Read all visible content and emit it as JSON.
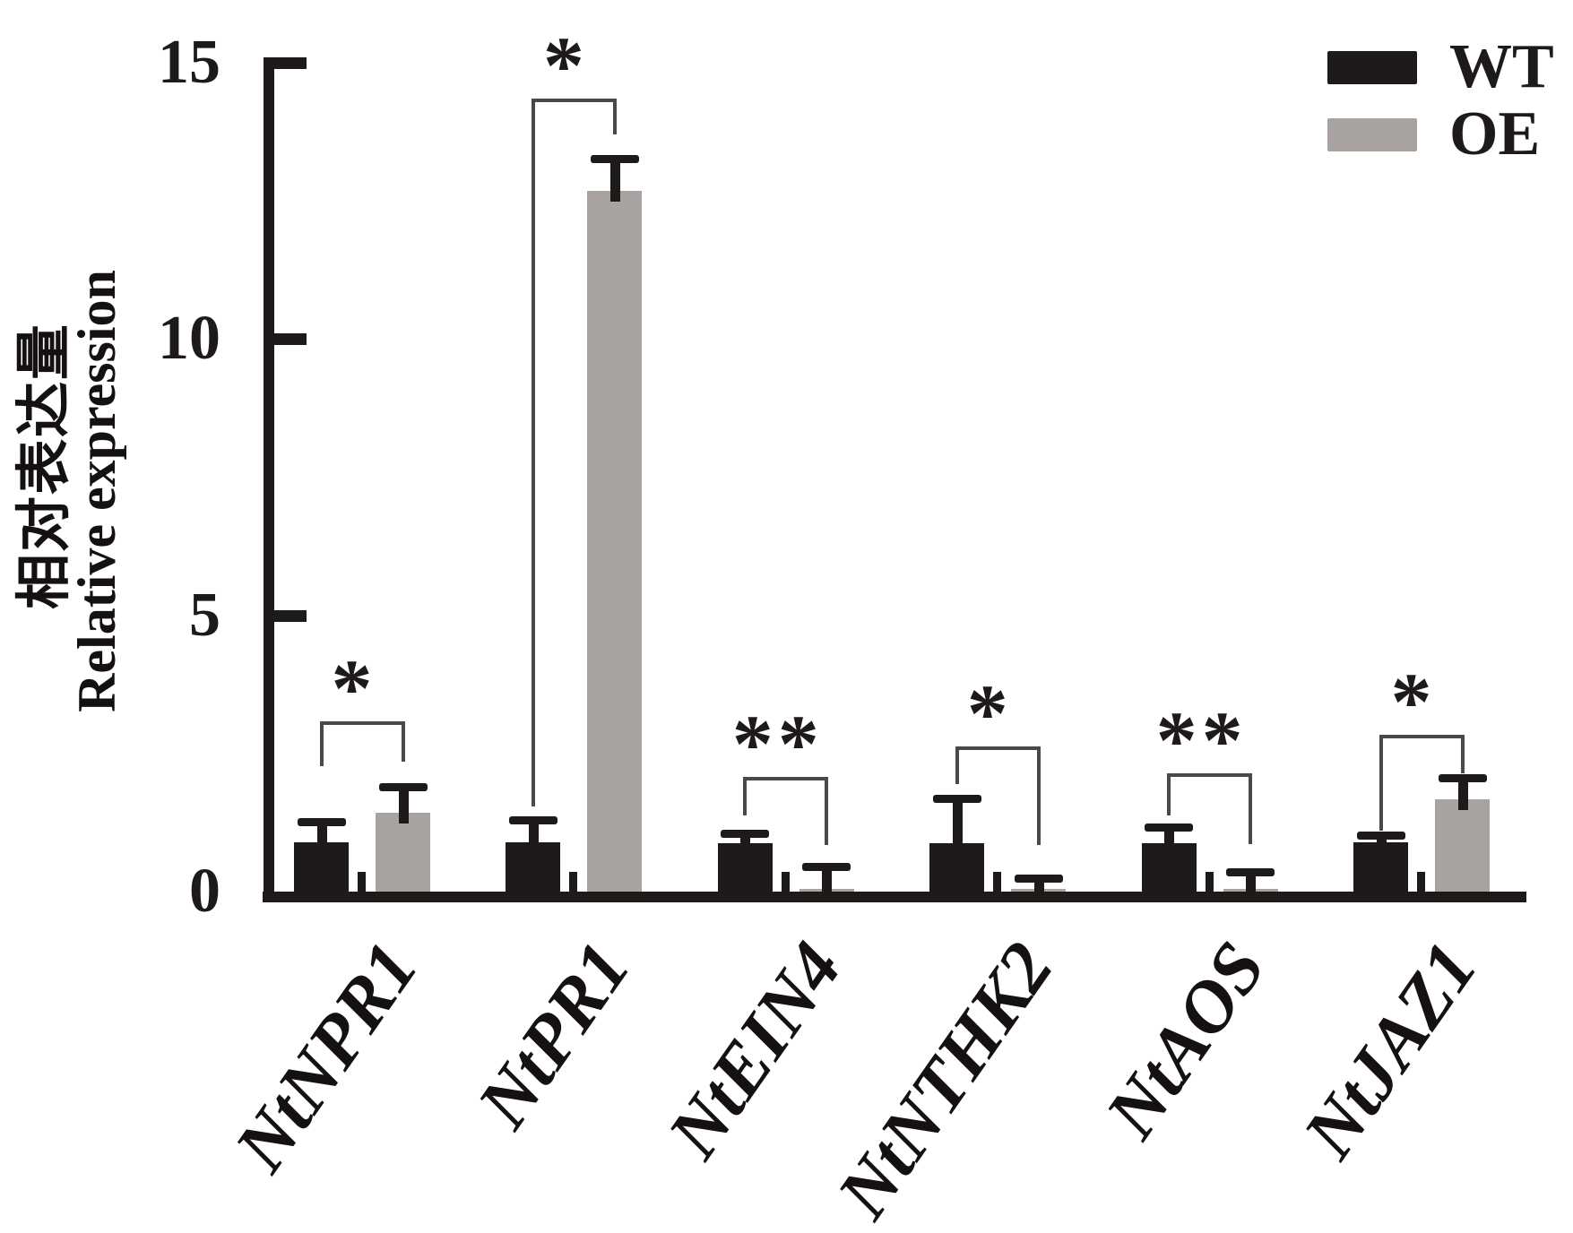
{
  "chart_data": {
    "type": "bar",
    "title": "",
    "ylabel_zh": "相对表达量",
    "ylabel_en": "Relative expression",
    "xlabel": "",
    "ylim": [
      0,
      15
    ],
    "yticks": [
      0,
      5,
      10,
      15
    ],
    "grid": false,
    "legend_position": "top-right",
    "categories": [
      "NtNPR1",
      "NtPR1",
      "NtEIN4",
      "NtNTHK2",
      "NtAOS",
      "NtJAZ1"
    ],
    "series": [
      {
        "name": "WT",
        "color": "#1e1a1a",
        "values": [
          0.89,
          0.89,
          0.87,
          0.88,
          0.88,
          0.89
        ],
        "err_top": [
          1.26,
          1.3,
          1.05,
          1.69,
          1.17,
          1.02
        ]
      },
      {
        "name": "OE",
        "color": "#a8a3a1",
        "values": [
          1.43,
          12.68,
          0.05,
          0.05,
          0.05,
          1.67
        ],
        "err_top": [
          1.9,
          13.27,
          0.45,
          0.24,
          0.36,
          2.06
        ]
      }
    ],
    "significance": [
      {
        "label": "*",
        "bracket_top": 3.08,
        "left_leg_bottom": 2.27,
        "right_leg_bottom": 2.35
      },
      {
        "label": "*",
        "bracket_top": 14.35,
        "left_leg_bottom": 1.54,
        "right_leg_bottom": 13.7
      },
      {
        "label": "**",
        "bracket_top": 2.08,
        "left_leg_bottom": 1.38,
        "right_leg_bottom": 0.84
      },
      {
        "label": "*",
        "bracket_top": 2.63,
        "left_leg_bottom": 1.95,
        "right_leg_bottom": 0.84
      },
      {
        "label": "**",
        "bracket_top": 2.14,
        "left_leg_bottom": 1.38,
        "right_leg_bottom": 0.86
      },
      {
        "label": "*",
        "bracket_top": 2.84,
        "left_leg_bottom": 1.1,
        "right_leg_bottom": 2.14
      }
    ]
  }
}
